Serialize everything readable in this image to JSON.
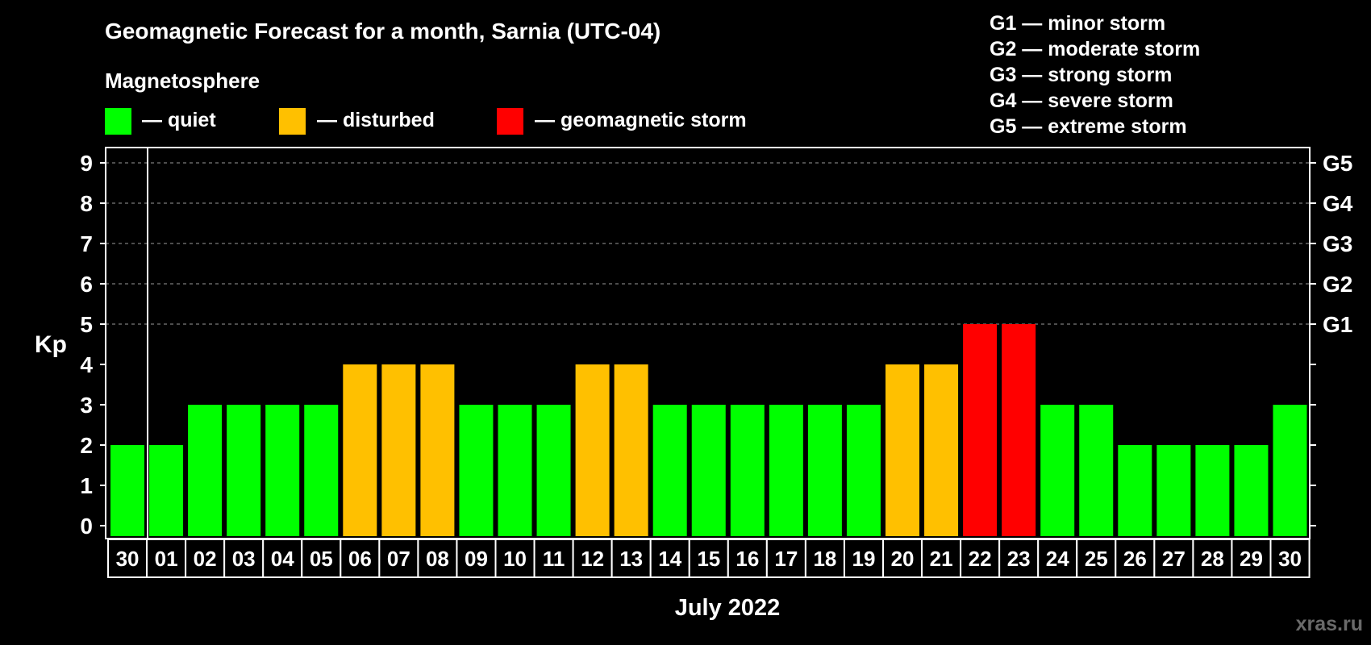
{
  "header": {
    "title": "Geomagnetic Forecast for a month, Sarnia (UTC-04)",
    "legend_heading": "Magnetosphere",
    "legend_items": [
      {
        "label": "— quiet",
        "color": "#00ff00"
      },
      {
        "label": "— disturbed",
        "color": "#ffc000"
      },
      {
        "label": "— geomagnetic storm",
        "color": "#ff0000"
      }
    ],
    "storm_scale": [
      "G1 — minor storm",
      "G2 — moderate storm",
      "G3 — strong storm",
      "G4 — severe storm",
      "G5 — extreme storm"
    ]
  },
  "chart_data": {
    "type": "bar",
    "ylabel": "Kp",
    "xlabel": "July 2022",
    "ylim": [
      0,
      9
    ],
    "yticks": [
      0,
      1,
      2,
      3,
      4,
      5,
      6,
      7,
      8,
      9
    ],
    "right_axis": [
      {
        "value": 5,
        "label": "G1"
      },
      {
        "value": 6,
        "label": "G2"
      },
      {
        "value": 7,
        "label": "G3"
      },
      {
        "value": 8,
        "label": "G4"
      },
      {
        "value": 9,
        "label": "G5"
      }
    ],
    "grid": "dashed horizontal",
    "categories": [
      "30",
      "01",
      "02",
      "03",
      "04",
      "05",
      "06",
      "07",
      "08",
      "09",
      "10",
      "11",
      "12",
      "13",
      "14",
      "15",
      "16",
      "17",
      "18",
      "19",
      "20",
      "21",
      "22",
      "23",
      "24",
      "25",
      "26",
      "27",
      "28",
      "29",
      "30"
    ],
    "values": [
      2,
      2,
      3,
      3,
      3,
      3,
      4,
      4,
      4,
      3,
      3,
      3,
      4,
      4,
      3,
      3,
      3,
      3,
      3,
      3,
      4,
      4,
      5,
      5,
      3,
      3,
      2,
      2,
      2,
      2,
      3
    ],
    "colors": {
      "quiet": "#00ff00",
      "disturbed": "#ffc000",
      "storm": "#ff0000"
    }
  },
  "watermark": "xras.ru"
}
